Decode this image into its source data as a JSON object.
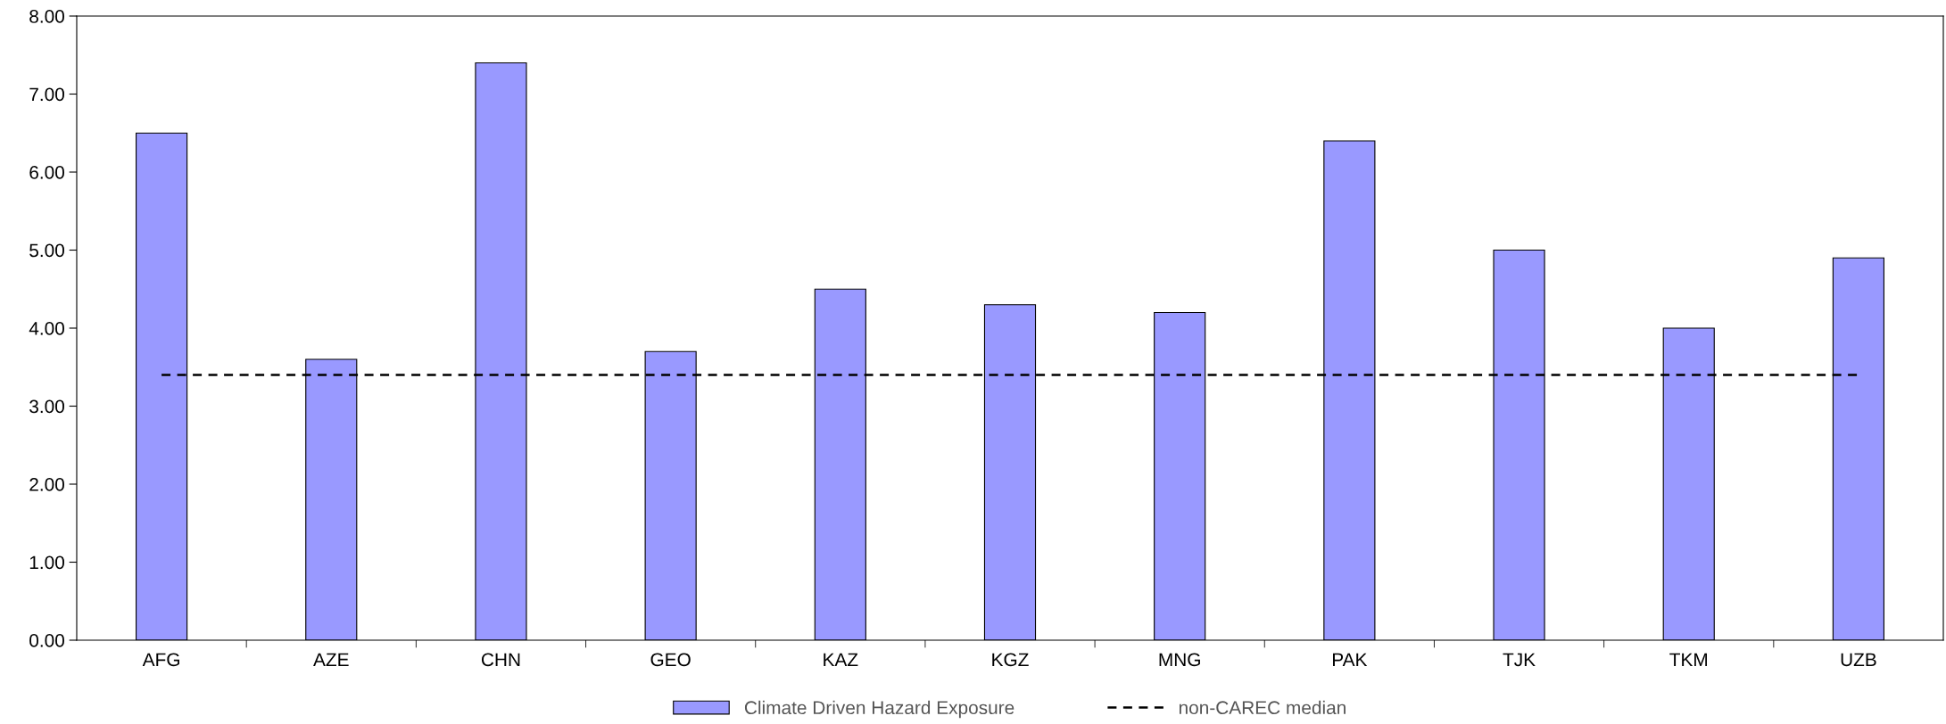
{
  "chart_data": {
    "type": "bar",
    "categories": [
      "AFG",
      "AZE",
      "CHN",
      "GEO",
      "KAZ",
      "KGZ",
      "MNG",
      "PAK",
      "TJK",
      "TKM",
      "UZB"
    ],
    "series": [
      {
        "name": "Climate Driven Hazard Exposure",
        "color": "#9999ff",
        "values": [
          6.5,
          3.6,
          7.4,
          3.7,
          4.5,
          4.3,
          4.2,
          6.4,
          5.0,
          4.0,
          4.9
        ]
      },
      {
        "name": "non-CAREC median",
        "type": "line",
        "color": "#000000",
        "line_style": "dashed",
        "values": [
          3.4,
          3.4,
          3.4,
          3.4,
          3.4,
          3.4,
          3.4,
          3.4,
          3.4,
          3.4,
          3.4
        ]
      }
    ],
    "ylim": [
      0,
      8
    ],
    "yticks": [
      {
        "value": 0,
        "label": "0.00"
      },
      {
        "value": 1,
        "label": "1.00"
      },
      {
        "value": 2,
        "label": "2.00"
      },
      {
        "value": 3,
        "label": "3.00"
      },
      {
        "value": 4,
        "label": "4.00"
      },
      {
        "value": 5,
        "label": "5.00"
      },
      {
        "value": 6,
        "label": "6.00"
      },
      {
        "value": 7,
        "label": "7.00"
      },
      {
        "value": 8,
        "label": "8.00"
      }
    ],
    "grid": false,
    "legend": "bottom"
  }
}
